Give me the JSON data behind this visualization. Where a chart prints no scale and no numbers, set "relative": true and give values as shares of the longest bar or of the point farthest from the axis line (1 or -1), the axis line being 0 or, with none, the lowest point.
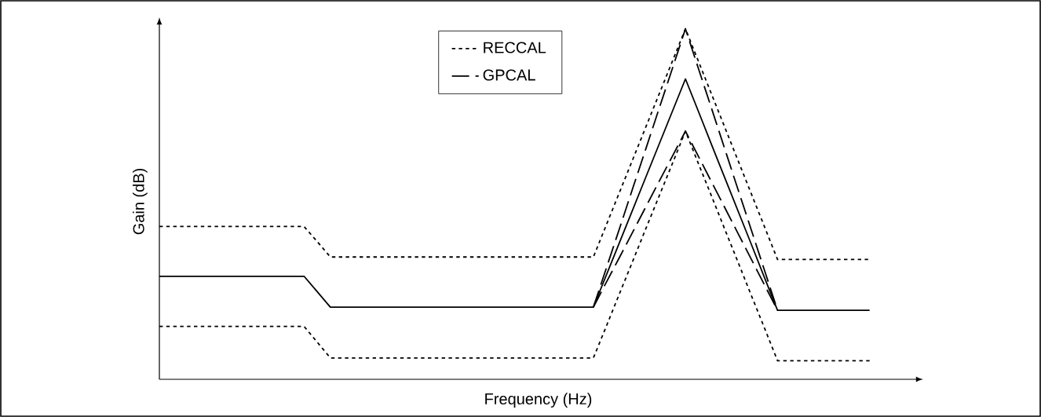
{
  "chart_data": {
    "type": "line",
    "relative": true,
    "xlabel": "Frequency (Hz)",
    "ylabel": "Gain (dB)",
    "legend": "top",
    "marker": "none",
    "categories": [
      null,
      null,
      null,
      null,
      null,
      null,
      null,
      null,
      null,
      null,
      null,
      null,
      null,
      null,
      null,
      null,
      null,
      null,
      null,
      null,
      null,
      null,
      null,
      null,
      null,
      null,
      null,
      null,
      null,
      null,
      null,
      null,
      null,
      null,
      null,
      null,
      null,
      null,
      null,
      null,
      null,
      null,
      null,
      null,
      null,
      null,
      null,
      null,
      null,
      null,
      null,
      null,
      null,
      null,
      null
    ],
    "series": [
      {
        "name": "RECCAL",
        "color": "#000000",
        "line_style": "dotted",
        "values": [
          0.436,
          0.436,
          0.436,
          0.436,
          0.436,
          0.436,
          0.436,
          0.436,
          0.436,
          0.436,
          0.436,
          0.436,
          0.393,
          0.349,
          0.349,
          0.349,
          0.349,
          0.349,
          0.349,
          0.349,
          0.349,
          0.349,
          0.349,
          0.349,
          0.349,
          0.349,
          0.349,
          0.349,
          0.349,
          0.349,
          0.349,
          0.349,
          0.349,
          0.349,
          0.442,
          0.535,
          0.628,
          0.721,
          0.814,
          0.907,
          1.0,
          0.906,
          0.812,
          0.718,
          0.624,
          0.53,
          0.436,
          0.342,
          0.342,
          0.342,
          0.342,
          0.342,
          0.342,
          0.342,
          0.342
        ]
      },
      {
        "name": "GPCAL",
        "color": "#000000",
        "line_style": "dashed",
        "values": [
          null,
          null,
          null,
          null,
          null,
          null,
          null,
          null,
          null,
          null,
          null,
          null,
          null,
          null,
          null,
          null,
          null,
          null,
          null,
          null,
          null,
          null,
          null,
          null,
          null,
          null,
          null,
          null,
          null,
          null,
          null,
          null,
          null,
          0.206,
          0.319,
          0.432,
          0.546,
          0.659,
          0.773,
          0.886,
          1.0,
          0.885,
          0.771,
          0.656,
          0.541,
          0.427,
          0.312,
          0.197,
          null,
          null,
          null,
          null,
          null,
          null,
          null
        ]
      },
      {
        "color": "#000000",
        "line_style": "solid",
        "values": [
          0.294,
          0.294,
          0.294,
          0.294,
          0.294,
          0.294,
          0.294,
          0.294,
          0.294,
          0.294,
          0.294,
          0.294,
          0.25,
          0.206,
          0.206,
          0.206,
          0.206,
          0.206,
          0.206,
          0.206,
          0.206,
          0.206,
          0.206,
          0.206,
          0.206,
          0.206,
          0.206,
          0.206,
          0.206,
          0.206,
          0.206,
          0.206,
          0.206,
          0.206,
          0.299,
          0.392,
          0.485,
          0.578,
          0.671,
          0.764,
          0.857,
          0.763,
          0.668,
          0.574,
          0.48,
          0.386,
          0.291,
          0.197,
          0.197,
          0.197,
          0.197,
          0.197,
          0.197,
          0.197,
          0.197
        ]
      },
      {
        "color": "#000000",
        "line_style": "dotted",
        "values": [
          0.151,
          0.151,
          0.151,
          0.151,
          0.151,
          0.151,
          0.151,
          0.151,
          0.151,
          0.151,
          0.151,
          0.151,
          0.106,
          0.061,
          0.061,
          0.061,
          0.061,
          0.061,
          0.061,
          0.061,
          0.061,
          0.061,
          0.061,
          0.061,
          0.061,
          0.061,
          0.061,
          0.061,
          0.061,
          0.061,
          0.061,
          0.061,
          0.061,
          0.061,
          0.153,
          0.246,
          0.338,
          0.431,
          0.523,
          0.615,
          0.708,
          0.614,
          0.521,
          0.427,
          0.334,
          0.24,
          0.147,
          0.053,
          0.053,
          0.053,
          0.053,
          0.053,
          0.053,
          0.053,
          0.053
        ]
      },
      {
        "color": "#000000",
        "line_style": "dashed",
        "values": [
          null,
          null,
          null,
          null,
          null,
          null,
          null,
          null,
          null,
          null,
          null,
          null,
          null,
          null,
          null,
          null,
          null,
          null,
          null,
          null,
          null,
          null,
          null,
          null,
          null,
          null,
          null,
          null,
          null,
          null,
          null,
          null,
          null,
          0.206,
          0.278,
          0.349,
          0.421,
          0.493,
          0.565,
          0.636,
          0.708,
          0.635,
          0.562,
          0.489,
          0.416,
          0.343,
          0.27,
          0.197,
          null,
          null,
          null,
          null,
          null,
          null,
          null
        ]
      }
    ]
  }
}
